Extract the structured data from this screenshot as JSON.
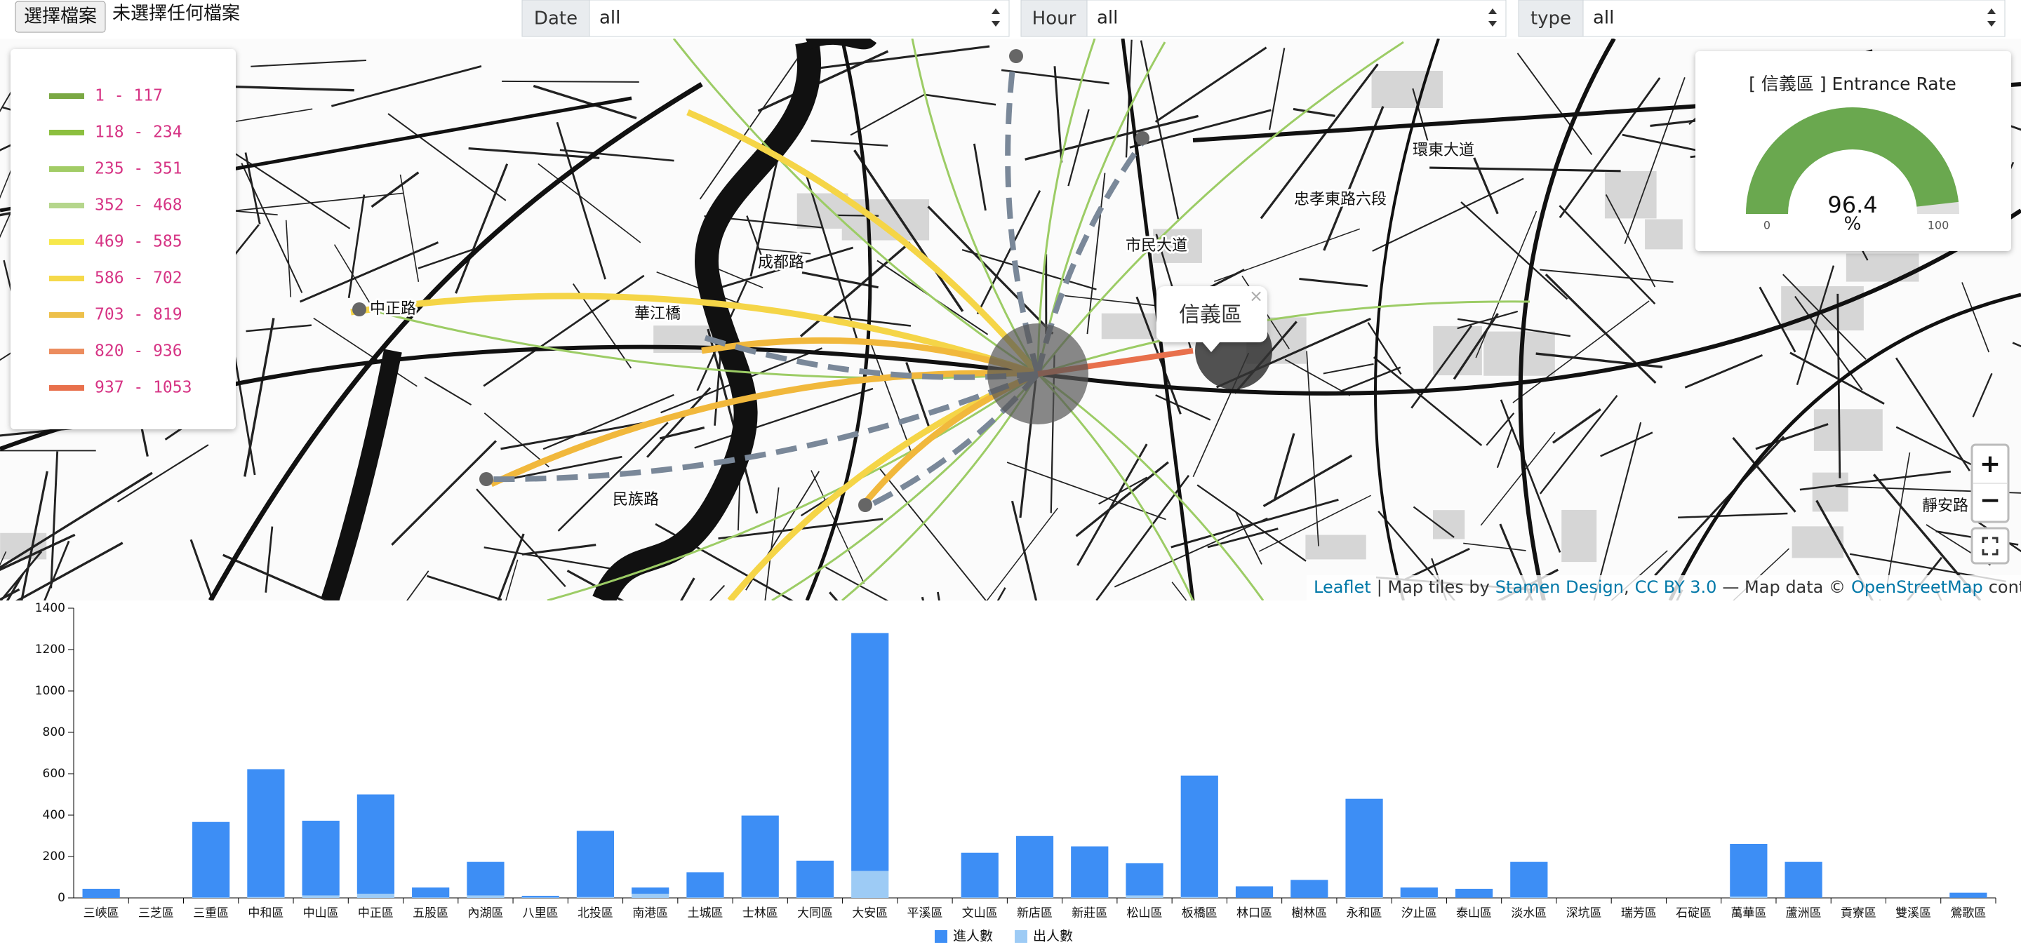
{
  "controls": {
    "file_button": "選擇檔案",
    "file_status": "未選擇任何檔案",
    "filters": [
      {
        "label": "Date",
        "value": "all"
      },
      {
        "label": "Hour",
        "value": "all"
      },
      {
        "label": "type",
        "value": "all"
      }
    ]
  },
  "map": {
    "legend": [
      {
        "label": "1 - 117",
        "color": "#7aa843"
      },
      {
        "label": "118 - 234",
        "color": "#8cbf3f"
      },
      {
        "label": "235 - 351",
        "color": "#a2cc66"
      },
      {
        "label": "352 - 468",
        "color": "#b5d68c"
      },
      {
        "label": "469 - 585",
        "color": "#f7e84b"
      },
      {
        "label": "586 - 702",
        "color": "#f5d94a"
      },
      {
        "label": "703 - 819",
        "color": "#edc04a"
      },
      {
        "label": "820 - 936",
        "color": "#ec8c5e"
      },
      {
        "label": "937 - 1053",
        "color": "#e8704c"
      }
    ],
    "popup": "信義區",
    "popup_close": "×",
    "zoom_in": "+",
    "zoom_out": "−",
    "labels": [
      "市民大道",
      "忠孝東路六段",
      "環東大道",
      "華江橋",
      "中正路",
      "民族路",
      "靜安路",
      "成都路"
    ],
    "attribution": [
      {
        "text": "Leaflet",
        "link": true
      },
      {
        "text": "| Map tiles by",
        "link": false
      },
      {
        "text": "Stamen Design",
        "link": true
      },
      {
        "text": ",",
        "link": false
      },
      {
        "text": "CC BY 3.0",
        "link": true
      },
      {
        "text": "— Map data ©",
        "link": false
      },
      {
        "text": "OpenStreetMap",
        "link": true
      },
      {
        "text": "contributors",
        "link": false
      }
    ]
  },
  "gauge": {
    "title": "[ 信義區 ] Entrance Rate",
    "value": 96.4,
    "unit": "%",
    "min": 0,
    "max": 100,
    "color": "#6aa84f"
  },
  "chart_data": {
    "type": "bar",
    "stacked": true,
    "categories": [
      "三峽區",
      "三芝區",
      "三重區",
      "中和區",
      "中山區",
      "中正區",
      "五股區",
      "內湖區",
      "八里區",
      "北投區",
      "南港區",
      "土城區",
      "士林區",
      "大同區",
      "大安區",
      "平溪區",
      "文山區",
      "新店區",
      "新莊區",
      "松山區",
      "板橋區",
      "林口區",
      "樹林區",
      "永和區",
      "汐止區",
      "泰山區",
      "淡水區",
      "深坑區",
      "瑞芳區",
      "石碇區",
      "萬華區",
      "蘆洲區",
      "貢寮區",
      "雙溪區",
      "鶯歌區"
    ],
    "series": [
      {
        "name": "進人數",
        "color": "#3d8ef5",
        "values": [
          44,
          0,
          365,
          618,
          361,
          480,
          48,
          162,
          8,
          320,
          30,
          122,
          394,
          178,
          1150,
          0,
          216,
          296,
          247,
          156,
          587,
          55,
          86,
          476,
          48,
          43,
          172,
          0,
          0,
          0,
          255,
          173,
          0,
          0,
          24
        ]
      },
      {
        "name": "出人數",
        "color": "#9dcbf5",
        "values": [
          0,
          0,
          2,
          4,
          12,
          20,
          2,
          12,
          2,
          4,
          20,
          2,
          4,
          2,
          130,
          0,
          2,
          3,
          2,
          12,
          4,
          1,
          1,
          3,
          2,
          1,
          2,
          0,
          0,
          0,
          6,
          1,
          0,
          0,
          1
        ]
      }
    ],
    "ylim": [
      0,
      1400
    ],
    "yticks": [
      0,
      200,
      400,
      600,
      800,
      1000,
      1200,
      1400
    ],
    "legend": "bottom"
  }
}
